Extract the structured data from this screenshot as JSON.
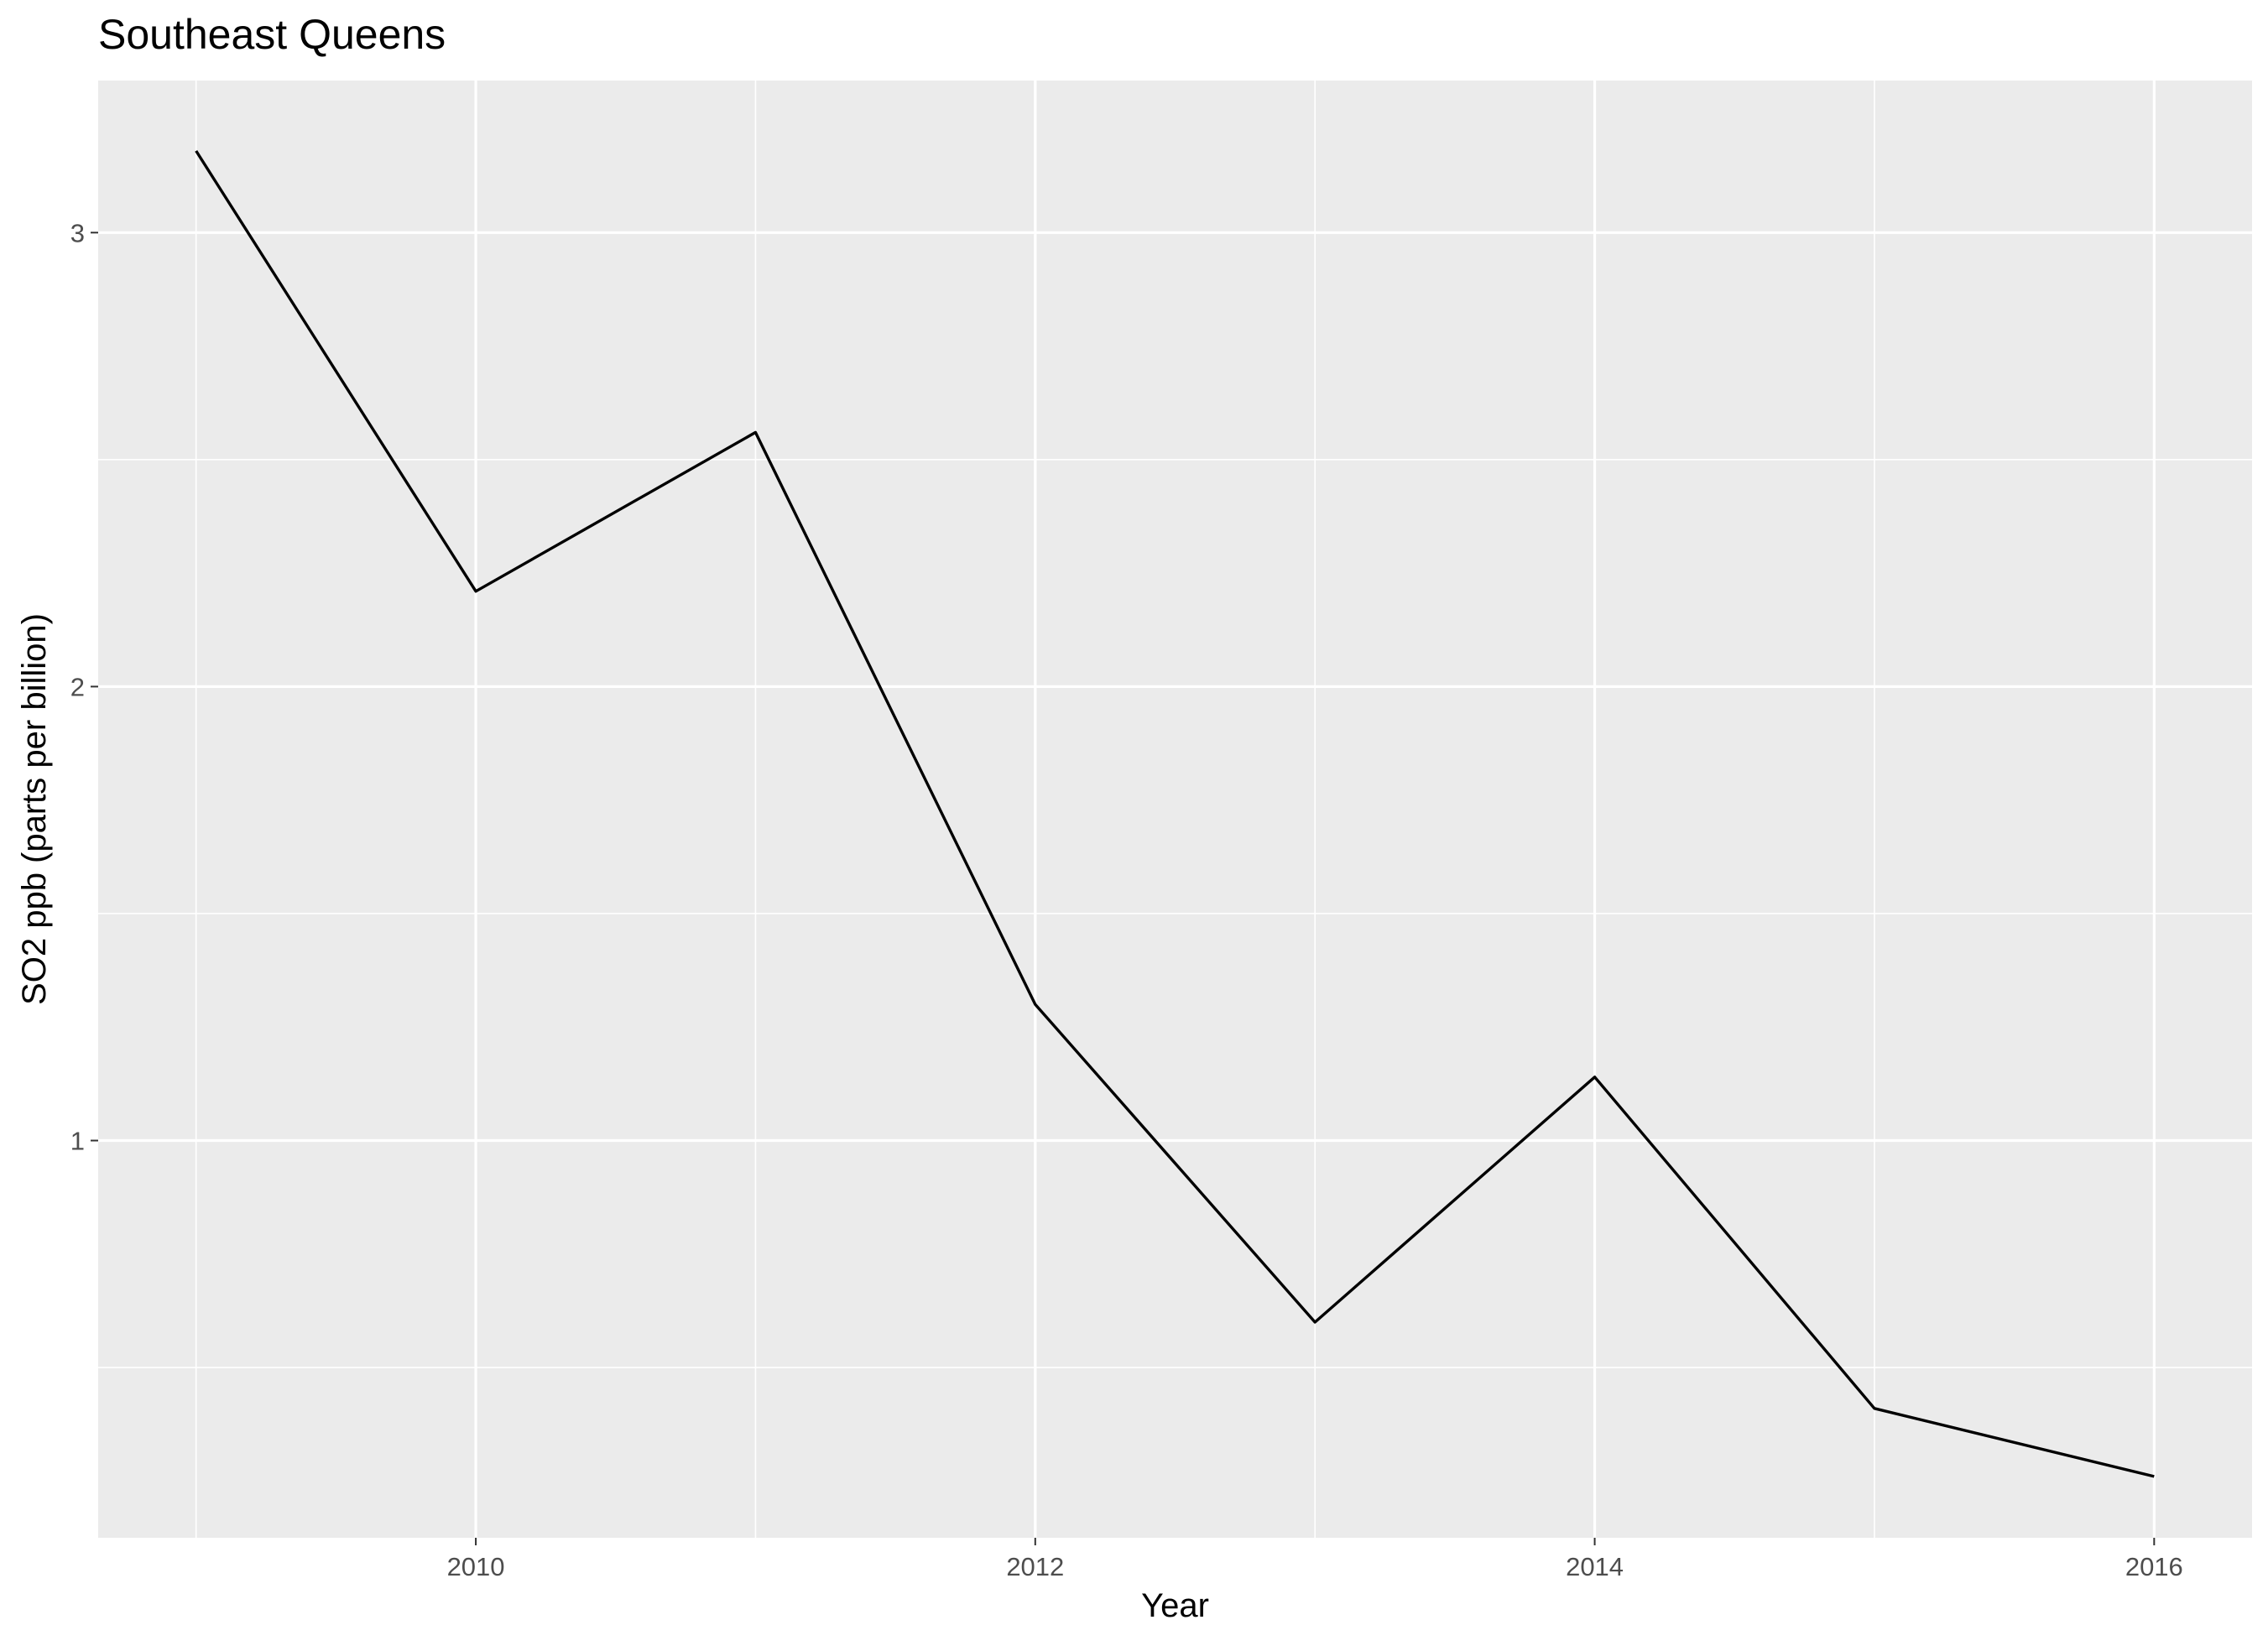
{
  "chart_data": {
    "type": "line",
    "title": "Southeast Queens",
    "xlabel": "Year",
    "ylabel": "SO2 ppb (parts per billion)",
    "x": [
      2009,
      2010,
      2011,
      2012,
      2013,
      2014,
      2015,
      2016
    ],
    "series": [
      {
        "values": [
          3.18,
          2.21,
          2.56,
          1.3,
          0.6,
          1.14,
          0.41,
          0.26
        ]
      }
    ],
    "xlim": [
      2008.65,
      2016.35
    ],
    "ylim": [
      0.125,
      3.335
    ],
    "x_ticks": [
      2010,
      2012,
      2014,
      2016
    ],
    "x_tick_labels": [
      "2010",
      "2012",
      "2014",
      "2016"
    ],
    "y_ticks": [
      1,
      2,
      3
    ],
    "y_tick_labels": [
      "1",
      "2",
      "3"
    ],
    "x_minor_ticks": [
      2009,
      2011,
      2013,
      2015
    ],
    "y_minor_ticks": [
      0.5,
      1.5,
      2.5
    ],
    "grid": true,
    "legend": "none",
    "colors": {
      "panel_background": "#ebebeb",
      "grid_major": "#ffffff",
      "grid_minor": "#ffffff",
      "line": "#000000",
      "tick_text": "#4d4d4d",
      "tick_mark": "#333333"
    }
  }
}
